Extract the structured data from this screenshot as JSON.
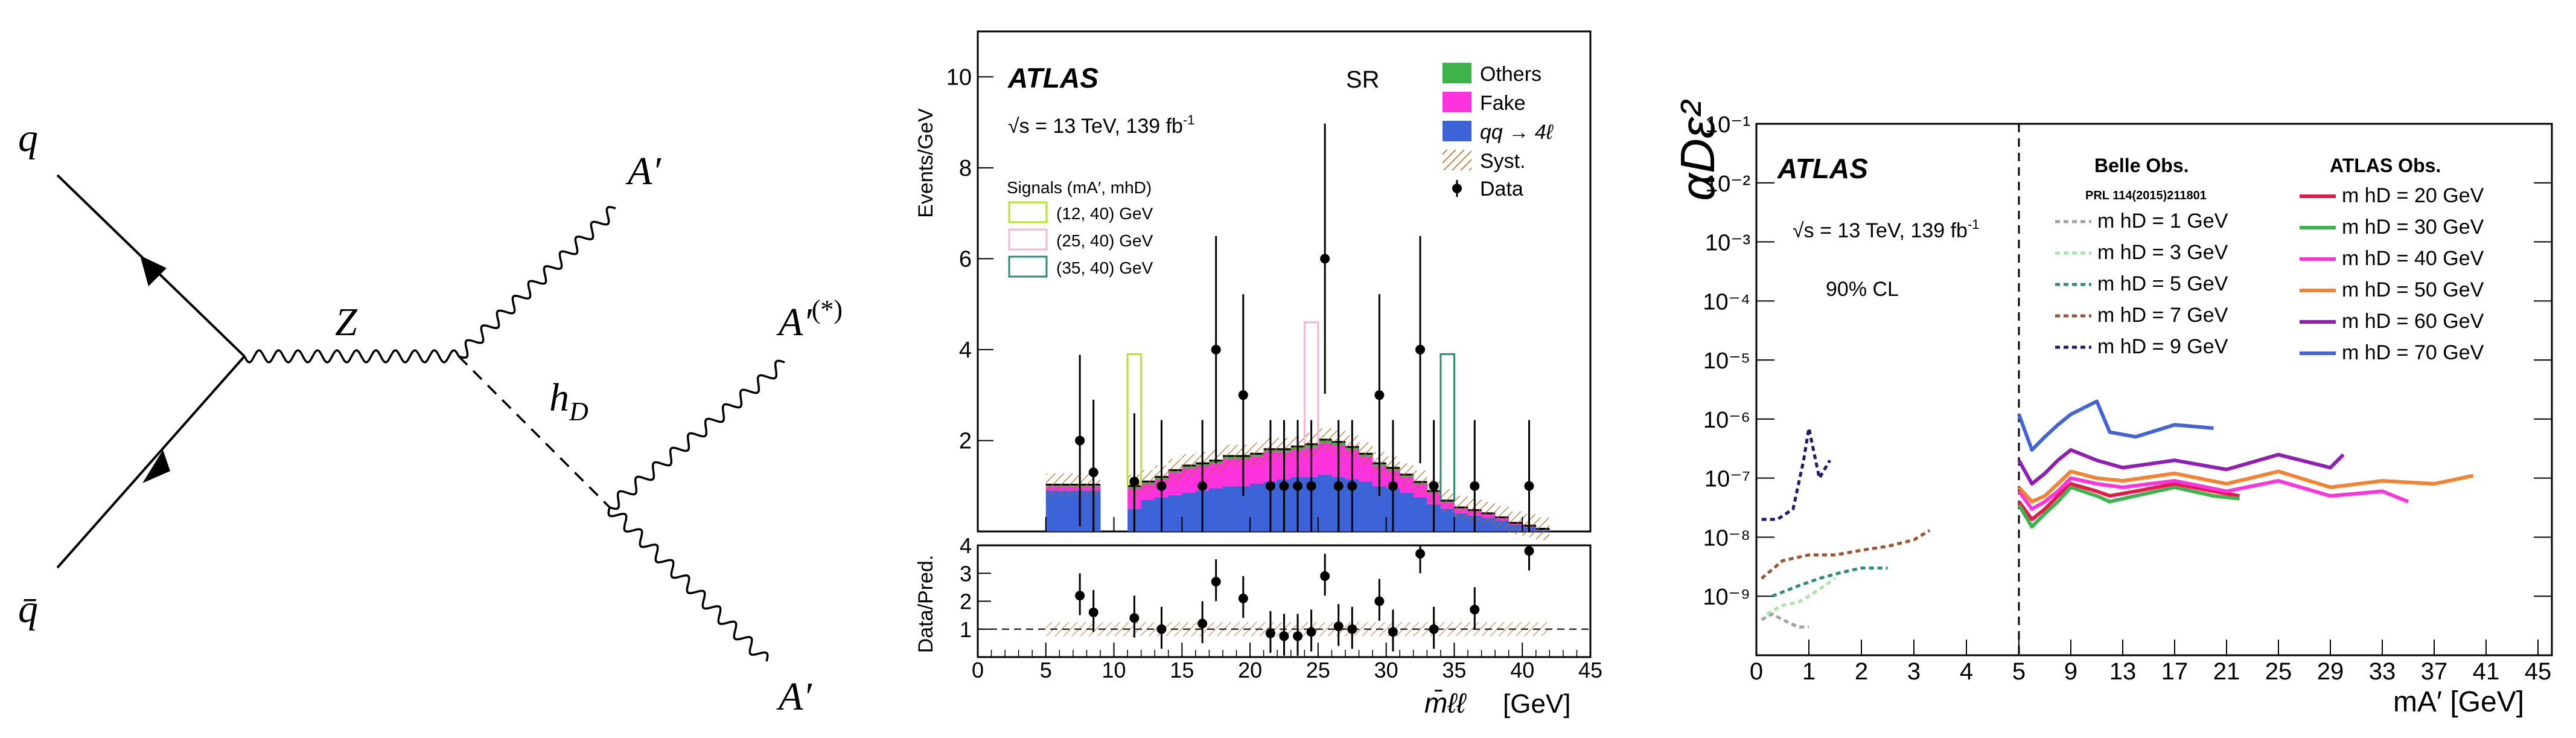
{
  "feynman": {
    "q": "q",
    "qbar": "q̄",
    "z": "Z",
    "hd": "hD",
    "hd_base": "h",
    "hd_sub": "D",
    "a_top": "A′",
    "a_mid_base": "A′",
    "a_mid_sup": "(*)",
    "a_bot": "A′"
  },
  "colors": {
    "others": "#3cb44b",
    "fake": "#ff33dd",
    "qq4l": "#3c64d8",
    "syst": "#b5651d",
    "sig12": "#b5e61d",
    "sig25": "#f4b6d0",
    "sig35": "#2e8b7a",
    "m20": "#e6194b",
    "m30": "#3cb44b",
    "m40": "#ff33dd",
    "m50": "#f58231",
    "m60": "#911eb4",
    "m70": "#4363d8",
    "b1": "#a0a0a0",
    "b3": "#a8e6a8",
    "b5": "#2e8b7a",
    "b7": "#a0522d",
    "b9": "#1a1a6e"
  },
  "panel2": {
    "atlas": "ATLAS",
    "energy": "√s = 13 TeV, 139 fb",
    "energy_sup": "-1",
    "sr": "SR",
    "ylabel_top": "Events/GeV",
    "ylabel_bot": "Data/Pred.",
    "xlabel": "m̄ℓℓ",
    "xunit": "[GeV]",
    "signals_title": "Signals  (mA′, mhD)",
    "legend": {
      "others": "Others",
      "fake": "Fake",
      "qq4l": "qq → 4ℓ",
      "syst": "Syst.",
      "data": "Data",
      "sig12": "(12, 40) GeV",
      "sig25": "(25, 40) GeV",
      "sig35": "(35, 40) GeV"
    }
  },
  "panel3": {
    "atlas": "ATLAS",
    "energy": "√s = 13 TeV, 139 fb",
    "energy_sup": "-1",
    "cl": "90% CL",
    "ylabel": "αDε²",
    "xlabel": "mA′ [GeV]",
    "belle_title": "Belle Obs.",
    "belle_ref": "PRL 114(2015)211801",
    "atlas_title": "ATLAS Obs.",
    "belle_items": [
      "m hD = 1 GeV",
      "m hD = 3 GeV",
      "m hD = 5 GeV",
      "m hD = 7 GeV",
      "m hD = 9 GeV"
    ],
    "atlas_items": [
      "m hD = 20 GeV",
      "m hD = 30 GeV",
      "m hD = 40 GeV",
      "m hD = 50 GeV",
      "m hD = 60 GeV",
      "m hD = 70 GeV"
    ]
  },
  "chart_data": [
    {
      "type": "bar",
      "title": "SR",
      "xlabel": "m̄ℓℓ [GeV]",
      "ylabel": "Events/GeV",
      "xlim": [
        0,
        45
      ],
      "ylim": [
        0,
        11
      ],
      "x_ticks": [
        0,
        5,
        10,
        15,
        20,
        25,
        30,
        35,
        40,
        45
      ],
      "y_ticks": [
        2,
        4,
        6,
        8,
        10
      ],
      "bin_edges": [
        5,
        7,
        9,
        11,
        12,
        13,
        14,
        15,
        16,
        17,
        18,
        19,
        20,
        21,
        22,
        23,
        24,
        25,
        26,
        27,
        28,
        29,
        30,
        31,
        32,
        33,
        34,
        35,
        36,
        37,
        38,
        39,
        40,
        41,
        42
      ],
      "series": [
        {
          "name": "qq → 4ℓ",
          "values": [
            0.9,
            0.9,
            0,
            0.5,
            0.7,
            0.75,
            0.8,
            0.85,
            0.9,
            0.95,
            1.0,
            1.0,
            1.05,
            1.1,
            1.15,
            1.2,
            1.2,
            1.25,
            1.2,
            1.15,
            1.1,
            1.0,
            0.95,
            0.85,
            0.75,
            0.6,
            0.5,
            0.4,
            0.35,
            0.3,
            0.25,
            0.15,
            0.1,
            0.05
          ]
        },
        {
          "name": "Fake",
          "values": [
            0.1,
            0.1,
            0,
            0.45,
            0.35,
            0.4,
            0.5,
            0.55,
            0.55,
            0.55,
            0.6,
            0.6,
            0.6,
            0.65,
            0.6,
            0.6,
            0.65,
            0.7,
            0.7,
            0.65,
            0.55,
            0.45,
            0.4,
            0.35,
            0.3,
            0.25,
            0.15,
            0.1,
            0.1,
            0.08,
            0.05,
            0.03,
            0.02,
            0.01
          ]
        },
        {
          "name": "Others",
          "values": [
            0.03,
            0.03,
            0,
            0.05,
            0.05,
            0.05,
            0.05,
            0.05,
            0.05,
            0.06,
            0.06,
            0.06,
            0.06,
            0.06,
            0.06,
            0.07,
            0.07,
            0.07,
            0.07,
            0.06,
            0.06,
            0.05,
            0.05,
            0.05,
            0.04,
            0.04,
            0.03,
            0.03,
            0.02,
            0.02,
            0.01,
            0.01,
            0.01,
            0.0
          ]
        }
      ],
      "signals": [
        {
          "name": "(12, 40) GeV",
          "x_range": [
            11,
            12
          ],
          "value": 3.9
        },
        {
          "name": "(25, 40) GeV",
          "x_range": [
            24,
            25
          ],
          "value": 4.6
        },
        {
          "name": "(35, 40) GeV",
          "x_range": [
            34,
            35
          ],
          "value": 3.9
        }
      ],
      "data": {
        "x": [
          7.5,
          8.5,
          11.5,
          13.5,
          16.5,
          17.5,
          19.5,
          21.5,
          22.5,
          23.5,
          24.5,
          25.5,
          26.5,
          27.5,
          29.5,
          30.5,
          32.5,
          33.5,
          36.5,
          40.5
        ],
        "y": [
          2.0,
          1.3,
          1.1,
          1.0,
          1.0,
          4.0,
          3.0,
          1.0,
          1.0,
          1.0,
          1.0,
          6.0,
          1.0,
          1.0,
          3.0,
          1.0,
          4.0,
          1.0,
          1.0,
          1.0
        ]
      },
      "ratio": {
        "ylabel": "Data/Pred.",
        "ylim": [
          0,
          4
        ],
        "y_ticks": [
          1,
          2,
          3,
          4
        ],
        "y": [
          2.2,
          1.6,
          1.4,
          1.0,
          1.2,
          2.7,
          2.1,
          0.85,
          0.75,
          0.75,
          0.9,
          2.9,
          1.1,
          1.0,
          2.0,
          0.9,
          3.7,
          1.0,
          1.7,
          3.8
        ]
      }
    },
    {
      "type": "line",
      "xlabel": "mA′ [GeV]",
      "ylabel": "αDε²",
      "y_scale": "log",
      "ylim": [
        1e-10,
        0.1
      ],
      "y_ticks": [
        "10⁻⁹",
        "10⁻⁸",
        "10⁻⁷",
        "10⁻⁶",
        "10⁻⁵",
        "10⁻⁴",
        "10⁻³",
        "10⁻²",
        "10⁻¹"
      ],
      "x_ticks_left": [
        "0",
        "1",
        "2",
        "3",
        "4",
        "5"
      ],
      "x_ticks_right": [
        "5",
        "9",
        "13",
        "17",
        "21",
        "25",
        "29",
        "33",
        "37",
        "41",
        "45"
      ],
      "series": [
        {
          "name": "m hD = 20 GeV",
          "x": [
            5,
            6,
            7,
            8,
            9,
            11,
            12,
            14,
            17,
            20,
            22
          ],
          "y": [
            4e-08,
            2e-08,
            3e-08,
            5e-08,
            8e-08,
            6e-08,
            5e-08,
            6e-08,
            8e-08,
            6e-08,
            5e-08
          ]
        },
        {
          "name": "m hD = 30 GeV",
          "x": [
            5,
            6,
            7,
            8,
            9,
            11,
            12,
            14,
            17,
            20,
            22
          ],
          "y": [
            3.5e-08,
            1.5e-08,
            2.5e-08,
            4e-08,
            7e-08,
            5e-08,
            4e-08,
            5e-08,
            7e-08,
            5e-08,
            4.5e-08
          ]
        },
        {
          "name": "m hD = 40 GeV",
          "x": [
            5,
            6,
            7,
            8,
            9,
            11,
            13,
            17,
            21,
            25,
            29,
            33,
            35
          ],
          "y": [
            6e-08,
            3e-08,
            4e-08,
            6e-08,
            1e-07,
            8e-08,
            7e-08,
            9e-08,
            6e-08,
            9e-08,
            5e-08,
            6e-08,
            4e-08
          ]
        },
        {
          "name": "m hD = 50 GeV",
          "x": [
            5,
            6,
            7,
            8,
            9,
            11,
            13,
            17,
            21,
            25,
            29,
            33,
            37,
            40
          ],
          "y": [
            7e-08,
            4e-08,
            5e-08,
            8e-08,
            1.3e-07,
            1e-07,
            9e-08,
            1.2e-07,
            8e-08,
            1.3e-07,
            7e-08,
            9e-08,
            8e-08,
            1.1e-07
          ]
        },
        {
          "name": "m hD = 60 GeV",
          "x": [
            5,
            6,
            7,
            8,
            9,
            11,
            13,
            17,
            21,
            25,
            29,
            30
          ],
          "y": [
            2e-07,
            8e-08,
            1.2e-07,
            2e-07,
            3e-07,
            2e-07,
            1.5e-07,
            2e-07,
            1.4e-07,
            2.5e-07,
            1.5e-07,
            2.5e-07
          ]
        },
        {
          "name": "m hD = 70 GeV",
          "x": [
            5,
            6,
            7,
            8,
            9,
            11,
            12,
            14,
            17,
            20
          ],
          "y": [
            1.2e-06,
            3e-07,
            5e-07,
            8e-07,
            1.2e-06,
            2e-06,
            6e-07,
            5e-07,
            8e-07,
            7e-07
          ]
        },
        {
          "name": "m hD = 1 GeV",
          "x": [
            0.1,
            0.3,
            0.5,
            0.8,
            1.0
          ],
          "y": [
            4e-10,
            5e-10,
            4e-10,
            3e-10,
            3e-10
          ]
        },
        {
          "name": "m hD = 3 GeV",
          "x": [
            0.2,
            0.5,
            0.8,
            1.0,
            1.5
          ],
          "y": [
            5e-10,
            7e-10,
            8e-10,
            1e-09,
            2e-09
          ]
        },
        {
          "name": "m hD = 5 GeV",
          "x": [
            0.3,
            0.8,
            1.2,
            1.6,
            2.0,
            2.5
          ],
          "y": [
            1e-09,
            1.5e-09,
            2e-09,
            2.5e-09,
            3e-09,
            3e-09
          ]
        },
        {
          "name": "m hD = 7 GeV",
          "x": [
            0.1,
            0.5,
            1.0,
            1.5,
            2.0,
            2.5,
            3.0,
            3.3
          ],
          "y": [
            2e-09,
            4e-09,
            5e-09,
            5e-09,
            6e-09,
            7e-09,
            9e-09,
            1.3e-08
          ]
        },
        {
          "name": "m hD = 9 GeV",
          "x": [
            0.1,
            0.4,
            0.7,
            0.9,
            1.0,
            1.2,
            1.4
          ],
          "y": [
            2e-08,
            2e-08,
            3e-08,
            2e-07,
            7e-07,
            1e-07,
            2e-07
          ]
        }
      ]
    }
  ]
}
